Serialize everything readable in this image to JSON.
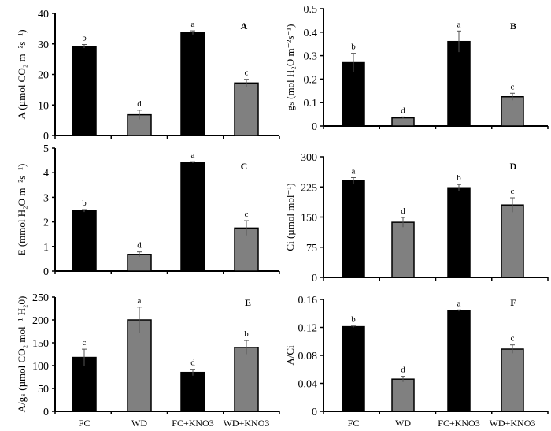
{
  "chart_data": [
    {
      "type": "bar",
      "panel_label": "A",
      "ylabel": "A (µmol CO₂ m⁻²s⁻¹)",
      "ylim": [
        0,
        40
      ],
      "yticks": [
        "0",
        "10",
        "20",
        "30",
        "40"
      ],
      "categories": [
        "FC",
        "WD",
        "FC+KNO3",
        "WD+KNO3"
      ],
      "values": [
        29.2,
        6.8,
        33.7,
        17.2
      ],
      "errors": [
        0.6,
        1.5,
        0.6,
        1.2
      ],
      "letters": [
        "b",
        "d",
        "a",
        "c"
      ]
    },
    {
      "type": "bar",
      "panel_label": "B",
      "ylabel": "gₛ (mol H₂O m⁻²s⁻¹)",
      "ylim": [
        0,
        0.5
      ],
      "yticks": [
        "0",
        "0.1",
        "0.2",
        "0.3",
        "0.4",
        "0.5"
      ],
      "categories": [
        "FC",
        "WD",
        "FC+KNO3",
        "WD+KNO3"
      ],
      "values": [
        0.27,
        0.035,
        0.36,
        0.125
      ],
      "errors": [
        0.04,
        0.004,
        0.045,
        0.015
      ],
      "letters": [
        "b",
        "d",
        "a",
        "c"
      ]
    },
    {
      "type": "bar",
      "panel_label": "C",
      "ylabel": "E (mmol H₂O m⁻²s⁻¹)",
      "ylim": [
        0,
        5
      ],
      "yticks": [
        "0",
        "1",
        "2",
        "3",
        "4",
        "5"
      ],
      "categories": [
        "FC",
        "WD",
        "FC+KNO3",
        "WD+KNO3"
      ],
      "values": [
        2.45,
        0.68,
        4.42,
        1.75
      ],
      "errors": [
        0.05,
        0.1,
        0.03,
        0.3
      ],
      "letters": [
        "b",
        "d",
        "a",
        "c"
      ]
    },
    {
      "type": "bar",
      "panel_label": "D",
      "ylabel": "Ci (µmol mol⁻¹)",
      "ylim": [
        0,
        300
      ],
      "yticks": [
        "0",
        "75",
        "150",
        "225",
        "300"
      ],
      "categories": [
        "FC",
        "WD",
        "FC+KNO3",
        "WD+KNO3"
      ],
      "values": [
        240,
        137,
        223,
        180
      ],
      "errors": [
        8,
        12,
        8,
        18
      ],
      "letters": [
        "a",
        "d",
        "b",
        "c"
      ]
    },
    {
      "type": "bar",
      "panel_label": "E",
      "ylabel": "A/gₛ (µmol CO₂ mol⁻¹ H₂0)",
      "ylim": [
        0,
        250
      ],
      "yticks": [
        "0",
        "50",
        "100",
        "150",
        "200",
        "250"
      ],
      "categories": [
        "FC",
        "WD",
        "FC+KNO3",
        "WD+KNO3"
      ],
      "values": [
        118,
        200,
        85,
        140
      ],
      "errors": [
        18,
        28,
        7,
        15
      ],
      "letters": [
        "c",
        "a",
        "d",
        "b"
      ]
    },
    {
      "type": "bar",
      "panel_label": "F",
      "ylabel": "A/Ci",
      "ylim": [
        0,
        0.16
      ],
      "yticks": [
        "0",
        "0.04",
        "0.08",
        "0.12",
        "0.16"
      ],
      "categories": [
        "FC",
        "WD",
        "FC+KNO3",
        "WD+KNO3"
      ],
      "values": [
        0.121,
        0.046,
        0.144,
        0.089
      ],
      "errors": [
        0.001,
        0.004,
        0.001,
        0.006
      ],
      "letters": [
        "b",
        "d",
        "a",
        "c"
      ]
    }
  ],
  "colors": {
    "FC": "#000000",
    "WD": "#808080",
    "FC+KNO3": "#000000",
    "WD+KNO3": "#808080"
  }
}
